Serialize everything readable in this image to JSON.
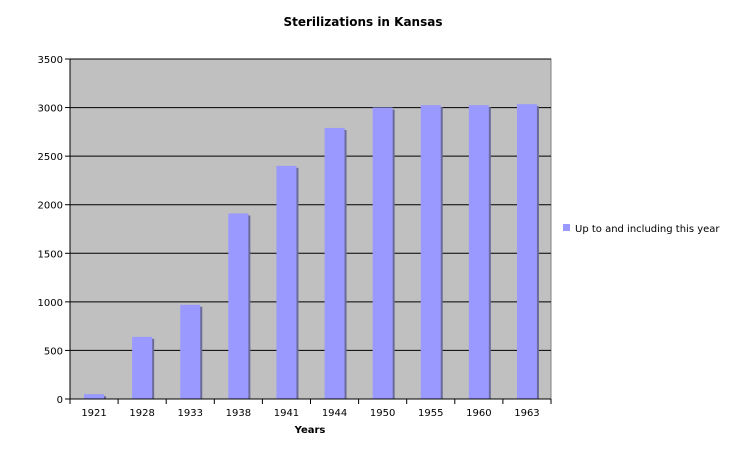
{
  "chart_data": {
    "type": "bar",
    "title": "Sterilizations in Kansas",
    "xlabel": "Years",
    "ylabel": "",
    "categories": [
      "1921",
      "1928",
      "1933",
      "1938",
      "1941",
      "1944",
      "1950",
      "1955",
      "1960",
      "1963"
    ],
    "series": [
      {
        "name": "Up to and including this year",
        "values": [
          50,
          640,
          970,
          1910,
          2400,
          2790,
          3000,
          3025,
          3025,
          3035
        ],
        "color": "#9999ff"
      }
    ],
    "ylim": [
      0,
      3500
    ],
    "yticks": [
      0,
      500,
      1000,
      1500,
      2000,
      2500,
      3000,
      3500
    ],
    "grid": true,
    "plot_background": "#c0c0c0",
    "legend_position": "right"
  }
}
